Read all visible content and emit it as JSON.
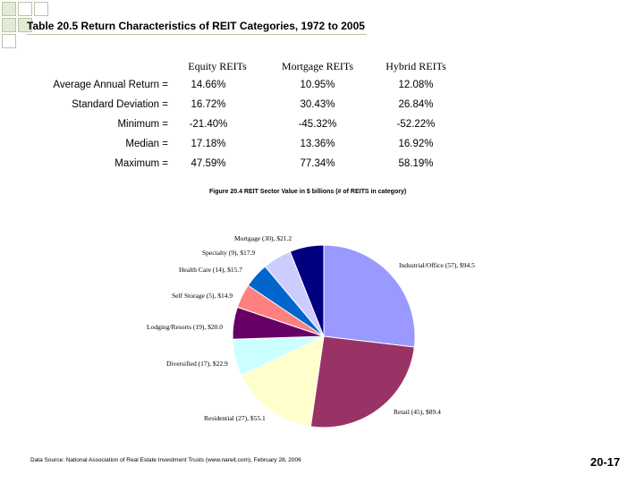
{
  "slide": {
    "title": "Table 20.5 Return Characteristics of REIT Categories, 1972 to 2005",
    "page_number": "20-17",
    "source": "Data Source: National Association of Real Estate Investment Trusts (www.nareit.com), February 28, 2006",
    "accent_color": "#b7c7a0"
  },
  "table": {
    "columns": [
      "Equity REITs",
      "Mortgage REITs",
      "Hybrid REITs"
    ],
    "rows": [
      {
        "label": "Average Annual Return =",
        "values": [
          "14.66%",
          "10.95%",
          "12.08%"
        ]
      },
      {
        "label": "Standard Deviation =",
        "values": [
          "16.72%",
          "30.43%",
          "26.84%"
        ]
      },
      {
        "label": "Minimum =",
        "values": [
          "-21.40%",
          "-45.32%",
          "-52.22%"
        ]
      },
      {
        "label": "Median =",
        "values": [
          "17.18%",
          "13.36%",
          "16.92%"
        ]
      },
      {
        "label": "Maximum =",
        "values": [
          "47.59%",
          "77.34%",
          "58.19%"
        ]
      }
    ]
  },
  "chart_data": {
    "type": "pie",
    "title": "Figure 20.4 REIT Sector Value in $ billions (# of REITS in category)",
    "slices": [
      {
        "label": "Industrial/Office (57), $94.5",
        "value": 94.5,
        "color": "#9999ff"
      },
      {
        "label": "Retail (45), $89.4",
        "value": 89.4,
        "color": "#993366"
      },
      {
        "label": "Residential (27), $55.1",
        "value": 55.1,
        "color": "#ffffcc"
      },
      {
        "label": "Diversified (17), $22.9",
        "value": 22.9,
        "color": "#ccffff"
      },
      {
        "label": "Lodging/Resorts (19), $20.0",
        "value": 20.0,
        "color": "#660066"
      },
      {
        "label": "Self Storage (5), $14.9",
        "value": 14.9,
        "color": "#ff8080"
      },
      {
        "label": "Health Care (14), $15.7",
        "value": 15.7,
        "color": "#0066cc"
      },
      {
        "label": "Specialty (9), $17.9",
        "value": 17.9,
        "color": "#ccccff"
      },
      {
        "label": "Mortgage (30), $21.2",
        "value": 21.2,
        "color": "#000080"
      }
    ]
  }
}
